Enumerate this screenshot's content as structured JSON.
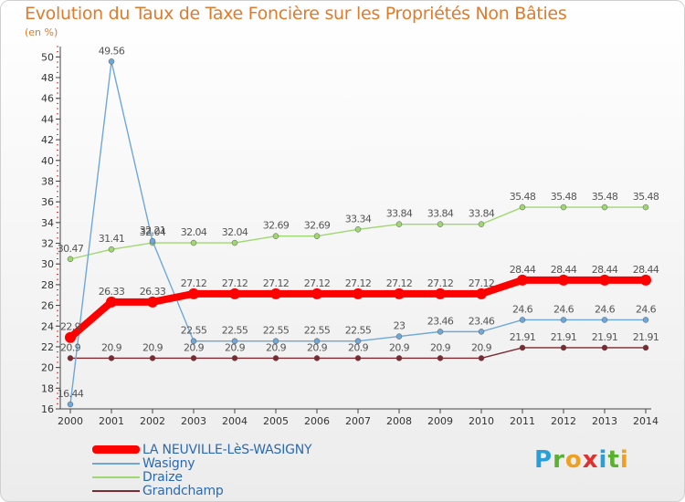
{
  "title": "Evolution du Taux de Taxe Foncière sur les Propriétés Non Bâties",
  "subtitle": "(en %)",
  "logo_letters": [
    "P",
    "r",
    "o",
    "x",
    "i",
    "t",
    "i"
  ],
  "chart_data": {
    "type": "line",
    "title": "Evolution du Taux de Taxe Foncière sur les Propriétés Non Bâties",
    "ylabel": "(en %)",
    "xlabel": "",
    "x": [
      "2000",
      "2001",
      "2002",
      "2003",
      "2004",
      "2005",
      "2006",
      "2007",
      "2008",
      "2009",
      "2010",
      "2011",
      "2012",
      "2013",
      "2014"
    ],
    "ylim": [
      16,
      51
    ],
    "yticks": [
      16,
      18,
      20,
      22,
      24,
      26,
      28,
      30,
      32,
      34,
      36,
      38,
      40,
      42,
      44,
      46,
      48,
      50
    ],
    "grid": false,
    "legend_position": "bottom-left",
    "series": [
      {
        "name": "LA NEUVILLE-LèS-WASIGNY",
        "color": "#ff0000",
        "values": [
          22.9,
          26.33,
          26.33,
          27.12,
          27.12,
          27.12,
          27.12,
          27.12,
          27.12,
          27.12,
          27.12,
          28.44,
          28.44,
          28.44,
          28.44
        ],
        "labels": [
          "22.9",
          "26.33",
          "26.33",
          "27.12",
          "27.12",
          "27.12",
          "27.12",
          "27.12",
          "27.12",
          "27.12",
          "27.12",
          "28.44",
          "28.44",
          "28.44",
          "28.44"
        ]
      },
      {
        "name": "Wasigny",
        "color": "#6fa8d8",
        "values": [
          16.44,
          49.56,
          32.21,
          22.55,
          22.55,
          22.55,
          22.55,
          22.55,
          23,
          23.46,
          23.46,
          24.6,
          24.6,
          24.6,
          24.6
        ],
        "labels": [
          "16.44",
          "49.56",
          "32.21",
          "22.55",
          "22.55",
          "22.55",
          "22.55",
          "22.55",
          "23",
          "23.46",
          "23.46",
          "24.6",
          "24.6",
          "24.6",
          "24.6"
        ]
      },
      {
        "name": "Draize",
        "color": "#9fd870",
        "values": [
          30.47,
          31.41,
          32.04,
          32.04,
          32.04,
          32.69,
          32.69,
          33.34,
          33.84,
          33.84,
          33.84,
          35.48,
          35.48,
          35.48,
          35.48
        ],
        "labels": [
          "30.47",
          "31.41",
          "32.04",
          "32.04",
          "32.04",
          "32.69",
          "32.69",
          "33.34",
          "33.84",
          "33.84",
          "33.84",
          "35.48",
          "35.48",
          "35.48",
          "35.48"
        ]
      },
      {
        "name": "Grandchamp",
        "color": "#7a2a30",
        "values": [
          20.9,
          20.9,
          20.9,
          20.9,
          20.9,
          20.9,
          20.9,
          20.9,
          20.9,
          20.9,
          20.9,
          21.91,
          21.91,
          21.91,
          21.91
        ],
        "labels": [
          "20.9",
          "20.9",
          "20.9",
          "20.9",
          "20.9",
          "20.9",
          "20.9",
          "20.9",
          "20.9",
          "20.9",
          "20.9",
          "21.91",
          "21.91",
          "21.91",
          "21.91"
        ]
      }
    ]
  }
}
